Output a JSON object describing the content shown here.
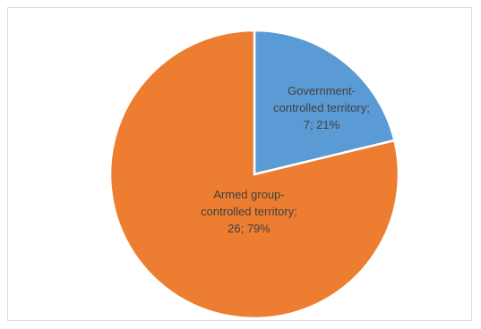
{
  "chart_data": {
    "type": "pie",
    "title": "",
    "categories": [
      "Government-controlled territory",
      "Armed group-controlled territory"
    ],
    "values": [
      7,
      26
    ],
    "percentages": [
      21,
      79
    ],
    "colors": [
      "#5b9bd5",
      "#ed7d31"
    ],
    "data_labels": [
      [
        "Government-",
        "controlled territory;",
        "7; 21%"
      ],
      [
        "Armed group-",
        "controlled territory;",
        "26; 79%"
      ]
    ],
    "legend": "none"
  }
}
